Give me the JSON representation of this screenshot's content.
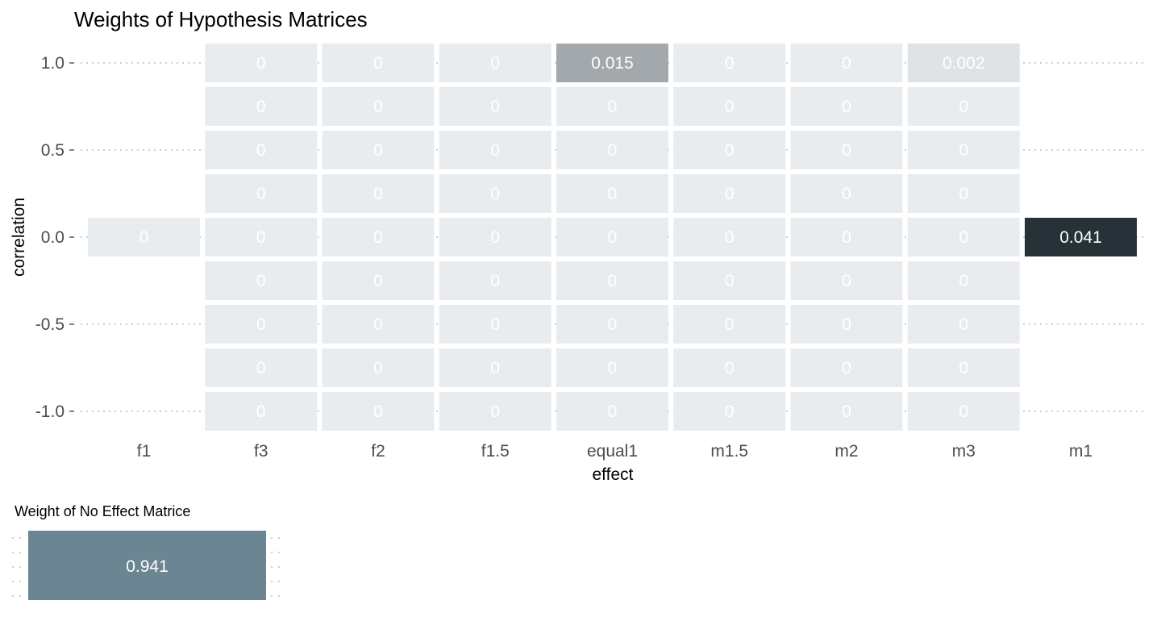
{
  "chart_data": [
    {
      "type": "heatmap",
      "title": "Weights of Hypothesis Matrices",
      "xlabel": "effect",
      "ylabel": "correlation",
      "x_categories": [
        "f1",
        "f3",
        "f2",
        "f1.5",
        "equal1",
        "m1.5",
        "m2",
        "m3",
        "m1"
      ],
      "y_ticks": [
        "1.0",
        "0.5",
        "0.0",
        "-0.5",
        "-1.0"
      ],
      "y_range": [
        -1.0,
        1.0
      ],
      "y_step": 0.25,
      "grid": "dotted horizontal at labeled ticks",
      "max_value": 0.041,
      "colors": {
        "low": "#e9ecef",
        "high": "#263238",
        "empty_text": "#ffffff",
        "grid": "#bdbdbd"
      },
      "cells": [
        {
          "x": "f1",
          "y": 0.0,
          "value": 0,
          "label": "0"
        },
        {
          "x": "f3",
          "y": 1.0,
          "value": 0,
          "label": "0"
        },
        {
          "x": "f3",
          "y": 0.75,
          "value": 0,
          "label": "0"
        },
        {
          "x": "f3",
          "y": 0.5,
          "value": 0,
          "label": "0"
        },
        {
          "x": "f3",
          "y": 0.25,
          "value": 0,
          "label": "0"
        },
        {
          "x": "f3",
          "y": 0.0,
          "value": 0,
          "label": "0"
        },
        {
          "x": "f3",
          "y": -0.25,
          "value": 0,
          "label": "0"
        },
        {
          "x": "f3",
          "y": -0.5,
          "value": 0,
          "label": "0"
        },
        {
          "x": "f3",
          "y": -0.75,
          "value": 0,
          "label": "0"
        },
        {
          "x": "f3",
          "y": -1.0,
          "value": 0,
          "label": "0"
        },
        {
          "x": "f2",
          "y": 1.0,
          "value": 0,
          "label": "0"
        },
        {
          "x": "f2",
          "y": 0.75,
          "value": 0,
          "label": "0"
        },
        {
          "x": "f2",
          "y": 0.5,
          "value": 0,
          "label": "0"
        },
        {
          "x": "f2",
          "y": 0.25,
          "value": 0,
          "label": "0"
        },
        {
          "x": "f2",
          "y": 0.0,
          "value": 0,
          "label": "0"
        },
        {
          "x": "f2",
          "y": -0.25,
          "value": 0,
          "label": "0"
        },
        {
          "x": "f2",
          "y": -0.5,
          "value": 0,
          "label": "0"
        },
        {
          "x": "f2",
          "y": -0.75,
          "value": 0,
          "label": "0"
        },
        {
          "x": "f2",
          "y": -1.0,
          "value": 0,
          "label": "0"
        },
        {
          "x": "f1.5",
          "y": 1.0,
          "value": 0,
          "label": "0"
        },
        {
          "x": "f1.5",
          "y": 0.75,
          "value": 0,
          "label": "0"
        },
        {
          "x": "f1.5",
          "y": 0.5,
          "value": 0,
          "label": "0"
        },
        {
          "x": "f1.5",
          "y": 0.25,
          "value": 0,
          "label": "0"
        },
        {
          "x": "f1.5",
          "y": 0.0,
          "value": 0,
          "label": "0"
        },
        {
          "x": "f1.5",
          "y": -0.25,
          "value": 0,
          "label": "0"
        },
        {
          "x": "f1.5",
          "y": -0.5,
          "value": 0,
          "label": "0"
        },
        {
          "x": "f1.5",
          "y": -0.75,
          "value": 0,
          "label": "0"
        },
        {
          "x": "f1.5",
          "y": -1.0,
          "value": 0,
          "label": "0"
        },
        {
          "x": "equal1",
          "y": 1.0,
          "value": 0.015,
          "label": "0.015"
        },
        {
          "x": "equal1",
          "y": 0.75,
          "value": 0,
          "label": "0"
        },
        {
          "x": "equal1",
          "y": 0.5,
          "value": 0,
          "label": "0"
        },
        {
          "x": "equal1",
          "y": 0.25,
          "value": 0,
          "label": "0"
        },
        {
          "x": "equal1",
          "y": 0.0,
          "value": 0,
          "label": "0"
        },
        {
          "x": "equal1",
          "y": -0.25,
          "value": 0,
          "label": "0"
        },
        {
          "x": "equal1",
          "y": -0.5,
          "value": 0,
          "label": "0"
        },
        {
          "x": "equal1",
          "y": -0.75,
          "value": 0,
          "label": "0"
        },
        {
          "x": "equal1",
          "y": -1.0,
          "value": 0,
          "label": "0"
        },
        {
          "x": "m1.5",
          "y": 1.0,
          "value": 0,
          "label": "0"
        },
        {
          "x": "m1.5",
          "y": 0.75,
          "value": 0,
          "label": "0"
        },
        {
          "x": "m1.5",
          "y": 0.5,
          "value": 0,
          "label": "0"
        },
        {
          "x": "m1.5",
          "y": 0.25,
          "value": 0,
          "label": "0"
        },
        {
          "x": "m1.5",
          "y": 0.0,
          "value": 0,
          "label": "0"
        },
        {
          "x": "m1.5",
          "y": -0.25,
          "value": 0,
          "label": "0"
        },
        {
          "x": "m1.5",
          "y": -0.5,
          "value": 0,
          "label": "0"
        },
        {
          "x": "m1.5",
          "y": -0.75,
          "value": 0,
          "label": "0"
        },
        {
          "x": "m1.5",
          "y": -1.0,
          "value": 0,
          "label": "0"
        },
        {
          "x": "m2",
          "y": 1.0,
          "value": 0,
          "label": "0"
        },
        {
          "x": "m2",
          "y": 0.75,
          "value": 0,
          "label": "0"
        },
        {
          "x": "m2",
          "y": 0.5,
          "value": 0,
          "label": "0"
        },
        {
          "x": "m2",
          "y": 0.25,
          "value": 0,
          "label": "0"
        },
        {
          "x": "m2",
          "y": 0.0,
          "value": 0,
          "label": "0"
        },
        {
          "x": "m2",
          "y": -0.25,
          "value": 0,
          "label": "0"
        },
        {
          "x": "m2",
          "y": -0.5,
          "value": 0,
          "label": "0"
        },
        {
          "x": "m2",
          "y": -0.75,
          "value": 0,
          "label": "0"
        },
        {
          "x": "m2",
          "y": -1.0,
          "value": 0,
          "label": "0"
        },
        {
          "x": "m3",
          "y": 1.0,
          "value": 0.002,
          "label": "0.002"
        },
        {
          "x": "m3",
          "y": 0.75,
          "value": 0,
          "label": "0"
        },
        {
          "x": "m3",
          "y": 0.5,
          "value": 0,
          "label": "0"
        },
        {
          "x": "m3",
          "y": 0.25,
          "value": 0,
          "label": "0"
        },
        {
          "x": "m3",
          "y": 0.0,
          "value": 0,
          "label": "0"
        },
        {
          "x": "m3",
          "y": -0.25,
          "value": 0,
          "label": "0"
        },
        {
          "x": "m3",
          "y": -0.5,
          "value": 0,
          "label": "0"
        },
        {
          "x": "m3",
          "y": -0.75,
          "value": 0,
          "label": "0"
        },
        {
          "x": "m3",
          "y": -1.0,
          "value": 0,
          "label": "0"
        },
        {
          "x": "m1",
          "y": 0.0,
          "value": 0.041,
          "label": "0.041"
        }
      ]
    },
    {
      "type": "heatmap",
      "title": "Weight of No Effect Matrice",
      "value": 0.941,
      "label": "0.941",
      "color": "#6b8592"
    }
  ]
}
